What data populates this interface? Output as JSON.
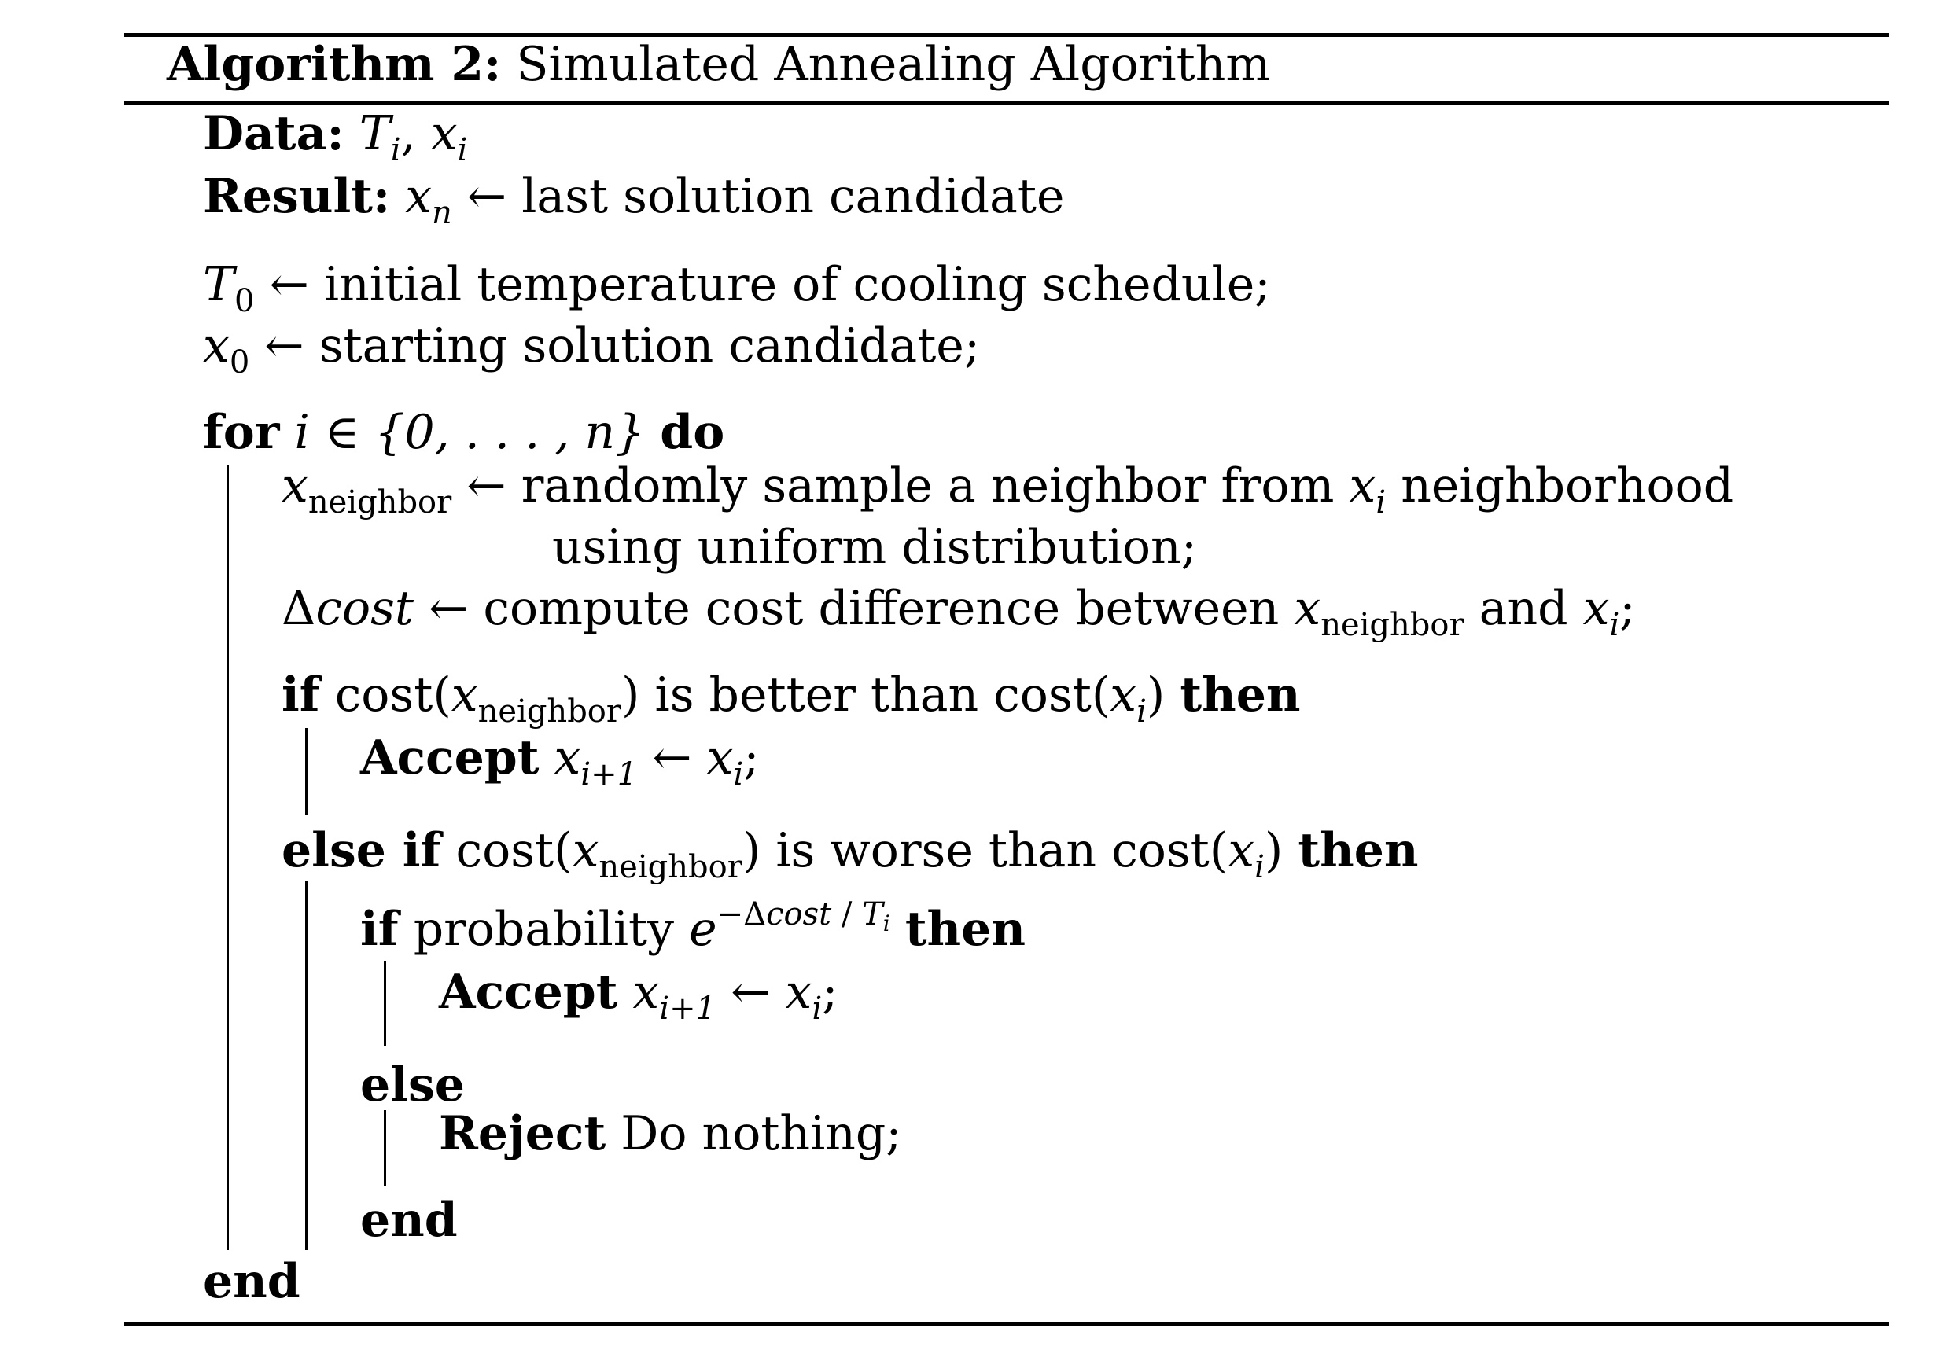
{
  "algorithm": {
    "caption_label": "Algorithm 2:",
    "caption_title": "Simulated Annealing Algorithm"
  },
  "keywords": {
    "data": "Data:",
    "result": "Result:",
    "for": "for",
    "do": "do",
    "if": "if",
    "then": "then",
    "else_if": "else if",
    "else": "else",
    "end": "end",
    "accept": "Accept",
    "reject": "Reject"
  },
  "symbols": {
    "T": "T",
    "x": "x",
    "i": "i",
    "n": "n",
    "zero": "0",
    "i_plus_1": "i+1",
    "neighbor": "neighbor",
    "arrow": "←",
    "delta": "Δ",
    "cost_var": "cost",
    "cost_fn": "cost",
    "e": "e",
    "exp_prefix": "−Δ",
    "exp_slash": " / ",
    "element_of": " ∈ ",
    "set": "{0, . . . , n}",
    "comma": ", ",
    "semicolon": ";",
    "lparen": "(",
    "rparen": ")"
  },
  "text": {
    "result_desc": "last solution candidate",
    "t0_desc": "initial temperature of cooling schedule;",
    "x0_desc": "starting solution candidate;",
    "sample_desc_1": "randomly sample a neighbor from",
    "sample_desc_2": "neighborhood",
    "sample_desc_3": "using uniform distribution;",
    "delta_desc_1": "compute cost difference between",
    "delta_desc_2": "and",
    "better_than": "is better than",
    "worse_than": "is worse than",
    "probability": "probability",
    "do_nothing": "Do nothing;"
  }
}
